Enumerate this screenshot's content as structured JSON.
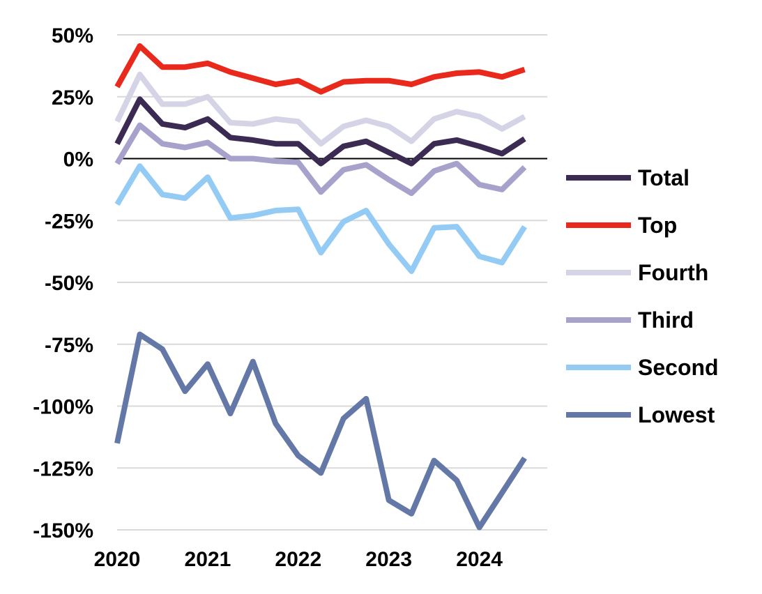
{
  "chart_data": {
    "type": "line",
    "title": "",
    "xlabel": "",
    "ylabel": "",
    "x_tick_labels": [
      "2020",
      "2021",
      "2022",
      "2023",
      "2024"
    ],
    "x_tick_values": [
      2020,
      2021,
      2022,
      2023,
      2024
    ],
    "y_tick_labels": [
      "50%",
      "25%",
      "0%",
      "-25%",
      "-50%",
      "-75%",
      "-100%",
      "-125%",
      "-150%"
    ],
    "y_tick_values": [
      50,
      25,
      0,
      -25,
      -50,
      -75,
      -100,
      -125,
      -150
    ],
    "xlim": [
      2020,
      2024.75
    ],
    "ylim": [
      -150,
      50
    ],
    "grid": "horizontal",
    "zero_line": true,
    "legend_position": "right",
    "x": [
      2020.0,
      2020.25,
      2020.5,
      2020.75,
      2021.0,
      2021.25,
      2021.5,
      2021.75,
      2022.0,
      2022.25,
      2022.5,
      2022.75,
      2023.0,
      2023.25,
      2023.5,
      2023.75,
      2024.0,
      2024.25,
      2024.5
    ],
    "series": [
      {
        "name": "Total",
        "color": "#3b2a52",
        "values": [
          6,
          24,
          14,
          12.5,
          16,
          8.5,
          7.5,
          6,
          6,
          -2,
          5,
          7,
          2.5,
          -2,
          6,
          7.5,
          5,
          2,
          8
        ]
      },
      {
        "name": "Top",
        "color": "#e8291c",
        "values": [
          29,
          45.5,
          37,
          37,
          38.5,
          35,
          32.5,
          30,
          31.5,
          27,
          31,
          31.5,
          31.5,
          30,
          33,
          34.5,
          35,
          33,
          36
        ]
      },
      {
        "name": "Fourth",
        "color": "#d5d3e6",
        "values": [
          15,
          34,
          22,
          22,
          25,
          14.5,
          14,
          16,
          15,
          6,
          13,
          15.5,
          13,
          7,
          16,
          19,
          17,
          12,
          17
        ]
      },
      {
        "name": "Third",
        "color": "#a7a2cc",
        "values": [
          -2,
          13.5,
          6,
          4.5,
          6.5,
          0,
          0,
          -1,
          -1.5,
          -13.5,
          -4.5,
          -2.5,
          -8.5,
          -14,
          -5,
          -2,
          -10.5,
          -12.5,
          -3.5
        ]
      },
      {
        "name": "Second",
        "color": "#93cbf4",
        "values": [
          -18.5,
          -3,
          -14.5,
          -16,
          -7.5,
          -24,
          -23,
          -21,
          -20.5,
          -38,
          -25.5,
          -21,
          -34.5,
          -45.5,
          -28,
          -27.5,
          -39.5,
          -42,
          -27.5
        ]
      },
      {
        "name": "Lowest",
        "color": "#6378a6",
        "values": [
          -115,
          -71,
          -77,
          -94,
          -83,
          -103,
          -82,
          -107,
          -120,
          -127,
          -105,
          -97,
          -138,
          -143.5,
          -122,
          -130,
          -149,
          -135,
          -121
        ]
      }
    ]
  }
}
